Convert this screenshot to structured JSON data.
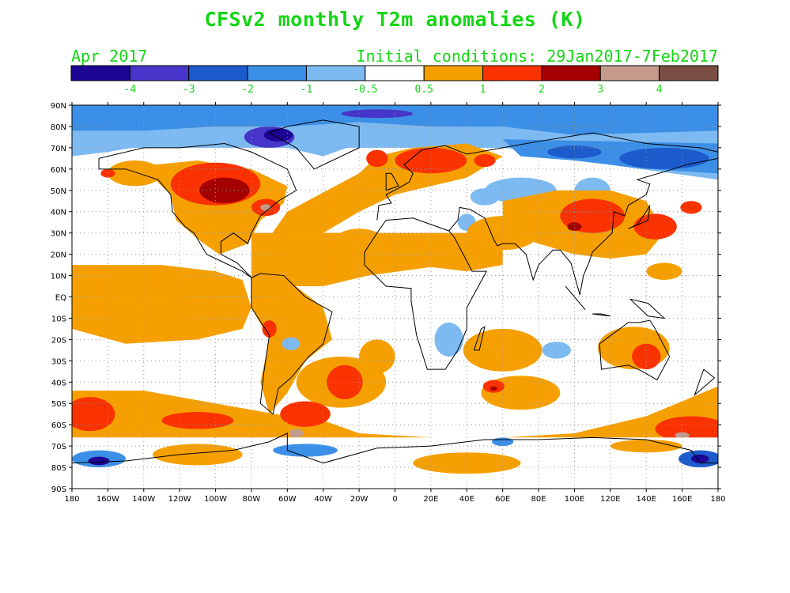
{
  "header": {
    "title": "CFSv2 monthly T2m anomalies (K)",
    "valid_month": "Apr 2017",
    "initial_conditions": "Initial conditions: 29Jan2017-7Feb2017"
  },
  "colors": {
    "text_green": "#13d613",
    "land_outline": "#000000",
    "grid": "#aaaaaa"
  },
  "colorbar": {
    "bins": [
      {
        "color": "#1e0596"
      },
      {
        "color": "#4635c8"
      },
      {
        "color": "#1c5bcc"
      },
      {
        "color": "#3c8fe6"
      },
      {
        "color": "#7dbaf2"
      },
      {
        "color": "#ffffff"
      },
      {
        "color": "#f5a000"
      },
      {
        "color": "#fa3200"
      },
      {
        "color": "#a50000"
      },
      {
        "color": "#c49a8c"
      },
      {
        "color": "#7a4e44"
      }
    ],
    "labels": [
      "-4",
      "-3",
      "-2",
      "-1",
      "-0.5",
      "0.5",
      "1",
      "2",
      "3",
      "4"
    ]
  },
  "map": {
    "lat_labels": [
      "90N",
      "80N",
      "70N",
      "60N",
      "50N",
      "40N",
      "30N",
      "20N",
      "10N",
      "EQ",
      "10S",
      "20S",
      "30S",
      "40S",
      "50S",
      "60S",
      "70S",
      "80S",
      "90S"
    ],
    "lon_labels": [
      "180",
      "160W",
      "140W",
      "120W",
      "100W",
      "80W",
      "60W",
      "40W",
      "20W",
      "0",
      "20E",
      "40E",
      "60E",
      "80E",
      "100E",
      "120E",
      "140E",
      "160E",
      "180"
    ]
  }
}
